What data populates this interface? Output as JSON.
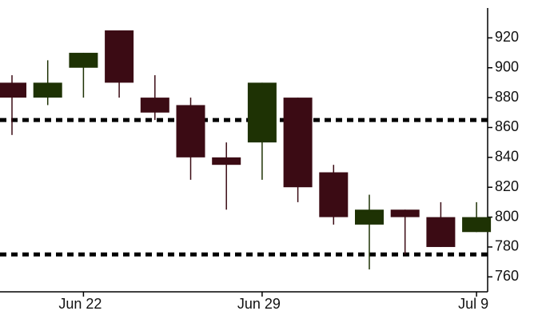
{
  "chart_data": {
    "type": "candlestick",
    "categories": [
      null,
      null,
      "Jun 22",
      null,
      null,
      null,
      null,
      "Jun 29",
      null,
      null,
      null,
      null,
      null,
      "Jul 9"
    ],
    "open": [
      890,
      880,
      900,
      925,
      880,
      875,
      840,
      850,
      880,
      830,
      795,
      805,
      800,
      790
    ],
    "high": [
      895,
      905,
      910,
      925,
      895,
      880,
      850,
      890,
      880,
      835,
      815,
      805,
      810,
      810
    ],
    "low": [
      855,
      875,
      880,
      880,
      865,
      825,
      805,
      825,
      810,
      795,
      765,
      775,
      780,
      790
    ],
    "close": [
      880,
      890,
      910,
      890,
      870,
      840,
      835,
      890,
      820,
      800,
      805,
      800,
      780,
      800
    ],
    "up_color": "#1e3204",
    "down_color": "#3b0b14",
    "reference_lines": [
      865,
      775
    ],
    "ylim": [
      750,
      940
    ],
    "yticks": [
      760,
      780,
      800,
      820,
      840,
      860,
      880,
      900,
      920
    ]
  }
}
